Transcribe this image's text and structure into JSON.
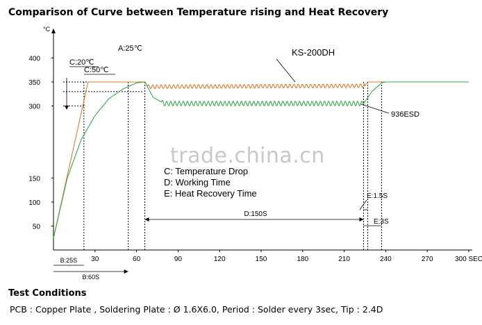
{
  "title": "Comparison of Curve between Temperature rising and Heat Recovery",
  "watermark": "trade.china.cn",
  "test_conditions": {
    "heading": "Test Conditions",
    "line": "PCB : Copper Plate ,  Soldering Plate : Ø 1.6X6.0,  Period : Solder every 3sec,  Tip : 2.4D"
  },
  "colors": {
    "ks_series": "#e8772e",
    "esd_series": "#3aa84a",
    "axis": "#000000",
    "grid": "#000000"
  },
  "chart_data": {
    "type": "line",
    "y_unit": "°C",
    "x_unit": "SEC",
    "xlim": [
      0,
      300
    ],
    "ylim": [
      0,
      400
    ],
    "x_ticks": [
      "30",
      "60",
      "90",
      "120",
      "150",
      "180",
      "210",
      "240",
      "270",
      "300 SEC"
    ],
    "x_tick_values": [
      30,
      60,
      90,
      120,
      150,
      180,
      210,
      240,
      270,
      300
    ],
    "y_ticks": [
      "50",
      "100",
      "150",
      "300",
      "350",
      "400"
    ],
    "y_tick_values": [
      50,
      100,
      150,
      300,
      350,
      400
    ],
    "series": [
      {
        "name": "KS-200DH",
        "points": [
          [
            0,
            25
          ],
          [
            25,
            350
          ],
          [
            66,
            350
          ],
          [
            68,
            340
          ],
          [
            225,
            342
          ],
          [
            227,
            350
          ],
          [
            300,
            350
          ]
        ],
        "oscillation": [
          68,
          225
        ]
      },
      {
        "name": "936ESD",
        "points": [
          [
            0,
            25
          ],
          [
            10,
            150
          ],
          [
            20,
            230
          ],
          [
            30,
            280
          ],
          [
            40,
            315
          ],
          [
            50,
            335
          ],
          [
            60,
            348
          ],
          [
            66,
            350
          ],
          [
            72,
            318
          ],
          [
            80,
            305
          ],
          [
            224,
            305
          ],
          [
            230,
            330
          ],
          [
            237,
            348
          ],
          [
            240,
            350
          ],
          [
            300,
            350
          ]
        ],
        "oscillation": [
          78,
          224
        ]
      }
    ],
    "annotations": {
      "A": "A:25℃",
      "C1": "C:20℃",
      "C2": "C:50℃",
      "B1": "B:25S",
      "B2": "B:60S",
      "D": "D:150S",
      "E1": "E:1.5S",
      "E2": "E:3S",
      "legend_c": "C: Temperature Drop",
      "legend_d": "D: Working Time",
      "legend_e": "E: Heat Recovery Time"
    }
  }
}
